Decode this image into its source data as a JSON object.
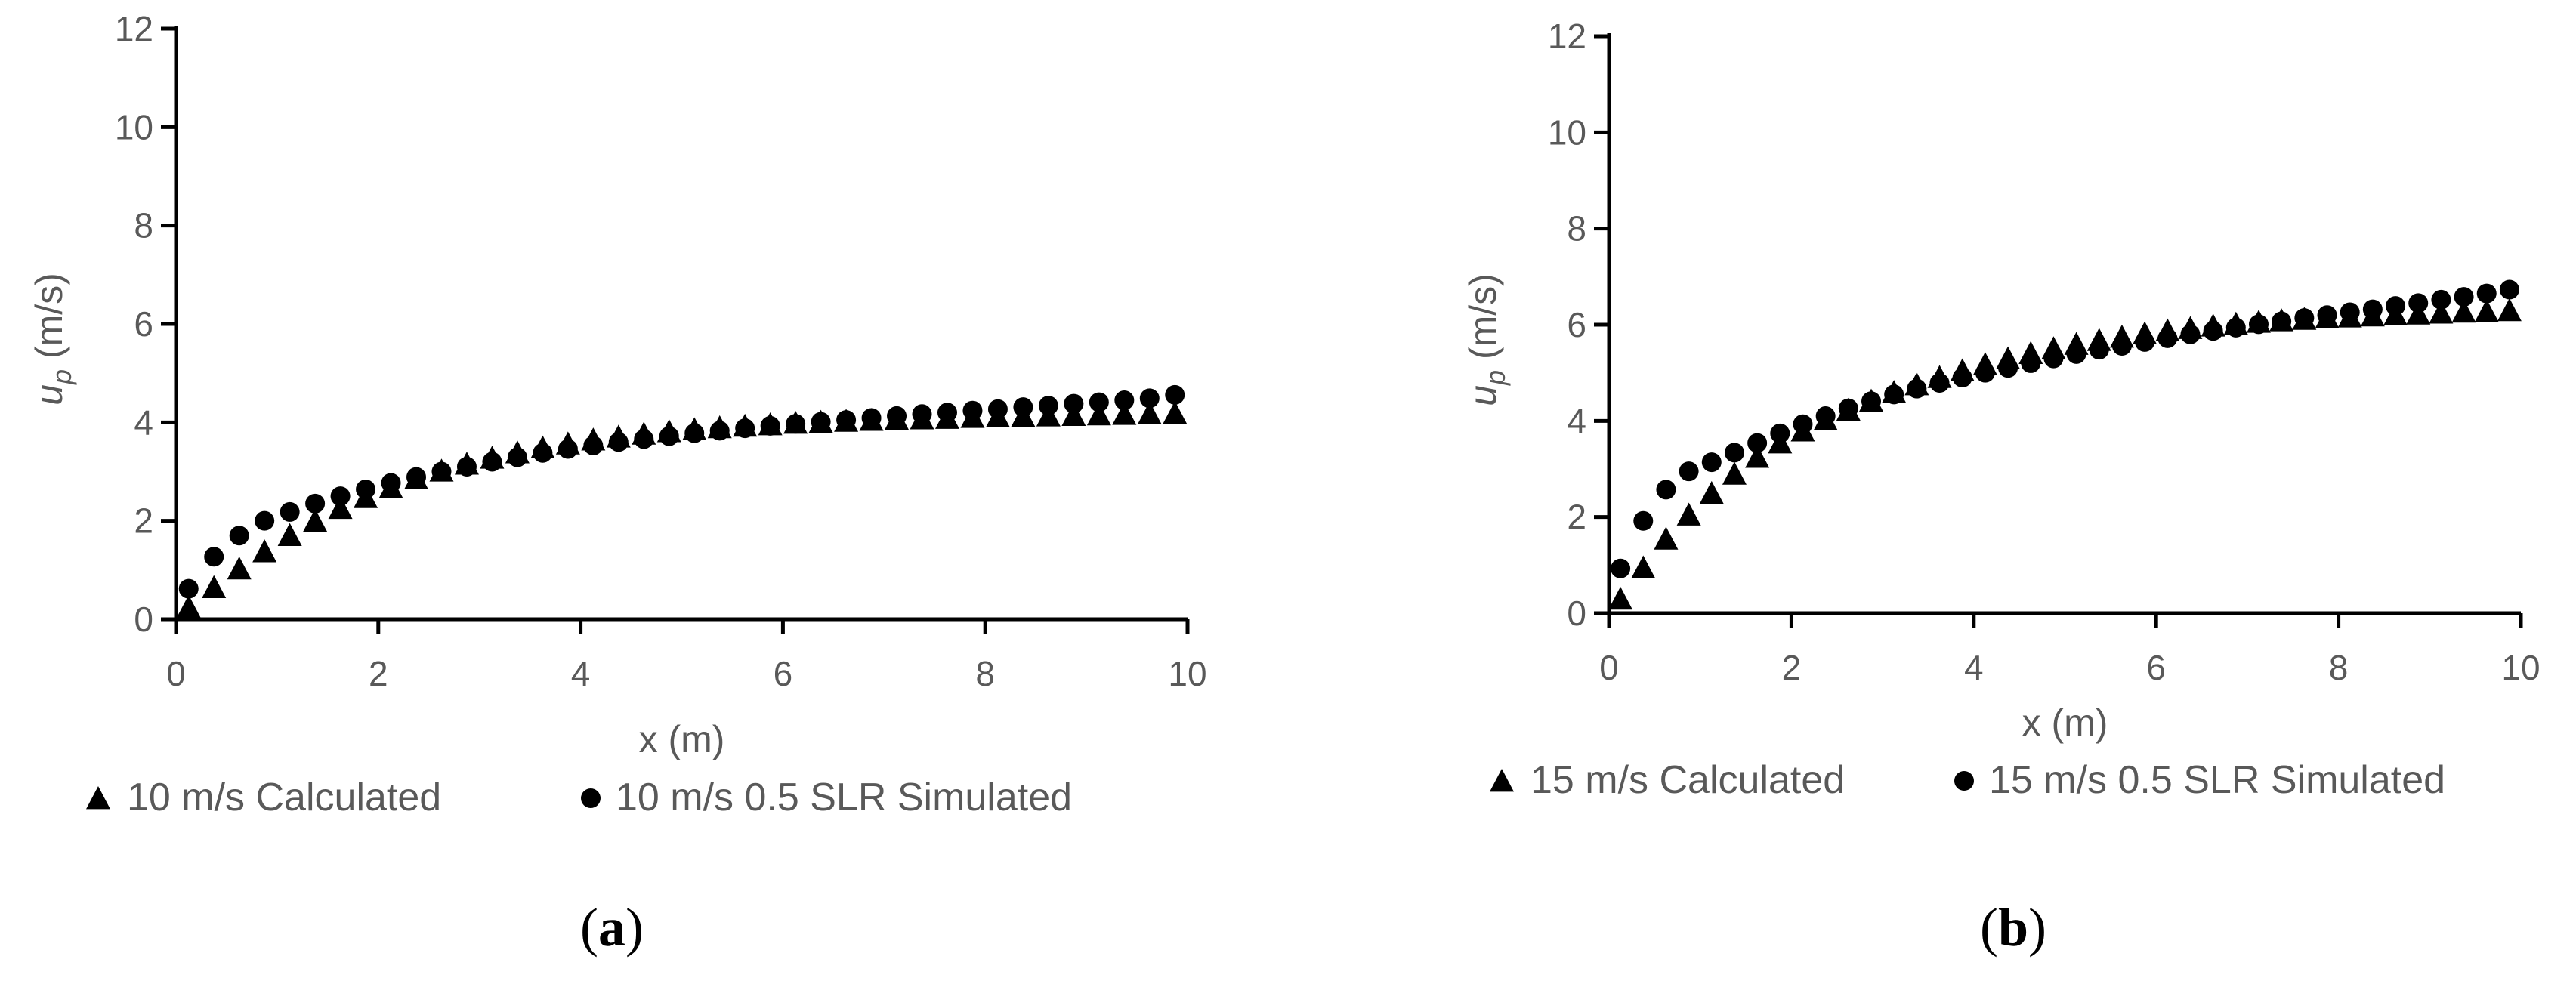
{
  "chart_data": [
    {
      "type": "scatter",
      "panel_label": "(a)",
      "panel_letter": "a",
      "xlabel": "x (m)",
      "ylabel_symbol": "u",
      "ylabel_subscript": "p",
      "ylabel_units": " (m/s)",
      "xlim": [
        0,
        10
      ],
      "ylim": [
        0,
        12
      ],
      "xticks": [
        0,
        2,
        4,
        6,
        8,
        10
      ],
      "yticks": [
        0,
        2,
        4,
        6,
        8,
        10,
        12
      ],
      "legend_position": "bottom",
      "series": [
        {
          "name": "10 m/s Calculated",
          "marker": "triangle",
          "x": [
            0.125,
            0.375,
            0.625,
            0.875,
            1.125,
            1.375,
            1.625,
            1.875,
            2.125,
            2.375,
            2.625,
            2.875,
            3.125,
            3.375,
            3.625,
            3.875,
            4.125,
            4.375,
            4.625,
            4.875,
            5.125,
            5.375,
            5.625,
            5.875,
            6.125,
            6.375,
            6.625,
            6.875,
            7.125,
            7.375,
            7.625,
            7.875,
            8.125,
            8.375,
            8.625,
            8.875,
            9.125,
            9.375,
            9.625,
            9.875
          ],
          "y": [
            0.25,
            0.65,
            1.03,
            1.38,
            1.71,
            2.0,
            2.26,
            2.48,
            2.68,
            2.86,
            3.02,
            3.16,
            3.28,
            3.39,
            3.49,
            3.57,
            3.65,
            3.71,
            3.77,
            3.82,
            3.86,
            3.9,
            3.93,
            3.96,
            3.99,
            4.01,
            4.03,
            4.05,
            4.07,
            4.08,
            4.09,
            4.11,
            4.12,
            4.13,
            4.14,
            4.15,
            4.16,
            4.17,
            4.18,
            4.19
          ]
        },
        {
          "name": "10 m/s 0.5 SLR Simulated",
          "marker": "circle",
          "x": [
            0.125,
            0.375,
            0.625,
            0.875,
            1.125,
            1.375,
            1.625,
            1.875,
            2.125,
            2.375,
            2.625,
            2.875,
            3.125,
            3.375,
            3.625,
            3.875,
            4.125,
            4.375,
            4.625,
            4.875,
            5.125,
            5.375,
            5.625,
            5.875,
            6.125,
            6.375,
            6.625,
            6.875,
            7.125,
            7.375,
            7.625,
            7.875,
            8.125,
            8.375,
            8.625,
            8.875,
            9.125,
            9.375,
            9.625,
            9.875
          ],
          "y": [
            0.62,
            1.27,
            1.7,
            2.0,
            2.18,
            2.35,
            2.5,
            2.64,
            2.77,
            2.89,
            3.0,
            3.1,
            3.2,
            3.29,
            3.38,
            3.46,
            3.53,
            3.6,
            3.66,
            3.72,
            3.78,
            3.83,
            3.88,
            3.93,
            3.97,
            4.01,
            4.05,
            4.09,
            4.13,
            4.17,
            4.2,
            4.24,
            4.27,
            4.31,
            4.34,
            4.38,
            4.41,
            4.45,
            4.49,
            4.56
          ]
        }
      ]
    },
    {
      "type": "scatter",
      "panel_label": "(b)",
      "panel_letter": "b",
      "xlabel": "x (m)",
      "ylabel_symbol": "u",
      "ylabel_subscript": "p",
      "ylabel_units": " (m/s)",
      "xlim": [
        0,
        10
      ],
      "ylim": [
        0,
        12
      ],
      "xticks": [
        0,
        2,
        4,
        6,
        8,
        10
      ],
      "yticks": [
        0,
        2,
        4,
        6,
        8,
        10,
        12
      ],
      "legend_position": "bottom",
      "series": [
        {
          "name": "15 m/s Calculated",
          "marker": "triangle",
          "x": [
            0.125,
            0.375,
            0.625,
            0.875,
            1.125,
            1.375,
            1.625,
            1.875,
            2.125,
            2.375,
            2.625,
            2.875,
            3.125,
            3.375,
            3.625,
            3.875,
            4.125,
            4.375,
            4.625,
            4.875,
            5.125,
            5.375,
            5.625,
            5.875,
            6.125,
            6.375,
            6.625,
            6.875,
            7.125,
            7.375,
            7.625,
            7.875,
            8.125,
            8.375,
            8.625,
            8.875,
            9.125,
            9.375,
            9.625,
            9.875
          ],
          "y": [
            0.3,
            0.95,
            1.55,
            2.05,
            2.5,
            2.9,
            3.25,
            3.55,
            3.8,
            4.03,
            4.23,
            4.42,
            4.6,
            4.76,
            4.91,
            5.05,
            5.18,
            5.3,
            5.41,
            5.51,
            5.6,
            5.68,
            5.75,
            5.82,
            5.88,
            5.93,
            5.98,
            6.02,
            6.06,
            6.09,
            6.12,
            6.15,
            6.17,
            6.19,
            6.21,
            6.23,
            6.25,
            6.27,
            6.28,
            6.3
          ]
        },
        {
          "name": "15 m/s 0.5 SLR Simulated",
          "marker": "circle",
          "x": [
            0.125,
            0.375,
            0.625,
            0.875,
            1.125,
            1.375,
            1.625,
            1.875,
            2.125,
            2.375,
            2.625,
            2.875,
            3.125,
            3.375,
            3.625,
            3.875,
            4.125,
            4.375,
            4.625,
            4.875,
            5.125,
            5.375,
            5.625,
            5.875,
            6.125,
            6.375,
            6.625,
            6.875,
            7.125,
            7.375,
            7.625,
            7.875,
            8.125,
            8.375,
            8.625,
            8.875,
            9.125,
            9.375,
            9.625,
            9.875
          ],
          "y": [
            0.93,
            1.92,
            2.57,
            2.95,
            3.14,
            3.34,
            3.54,
            3.74,
            3.93,
            4.1,
            4.26,
            4.41,
            4.55,
            4.67,
            4.79,
            4.9,
            5.0,
            5.1,
            5.2,
            5.3,
            5.39,
            5.48,
            5.56,
            5.64,
            5.72,
            5.8,
            5.87,
            5.94,
            6.01,
            6.07,
            6.14,
            6.2,
            6.26,
            6.32,
            6.39,
            6.45,
            6.52,
            6.58,
            6.65,
            6.73
          ]
        }
      ]
    }
  ]
}
